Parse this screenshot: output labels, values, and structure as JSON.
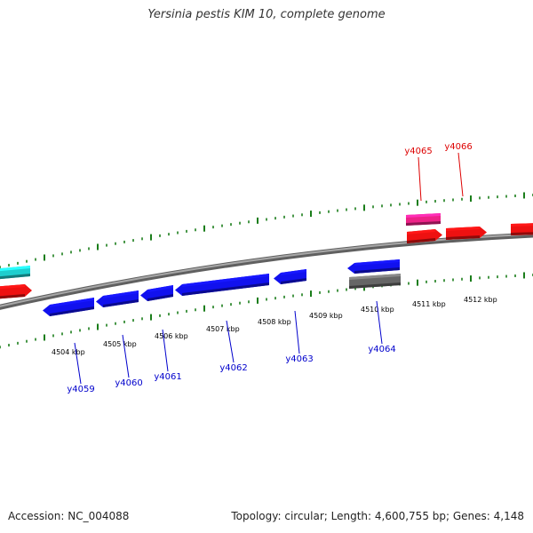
{
  "title": "Yersinia pestis KIM 10, complete genome",
  "footer": {
    "accession": "Accession: NC_004088",
    "stats": "Topology: circular; Length: 4,600,755 bp; Genes: 4,148"
  },
  "colors": {
    "backbone": "#808080",
    "tick": "#1a7d1a",
    "forward_gene": "#ee1111",
    "reverse_gene": "#1111ee",
    "label_forward": "#dd0000",
    "label_reverse": "#0000cc"
  },
  "chart_data": {
    "type": "linear genome map",
    "ruler_labels": [
      "4504 kbp",
      "4505 kbp",
      "4506 kbp",
      "4507 kbp",
      "4508 kbp",
      "4509 kbp",
      "4510 kbp",
      "4511 kbp",
      "4512 kbp"
    ],
    "genes": [
      {
        "label": "y4059",
        "strand": "reverse",
        "color": "#1111ee"
      },
      {
        "label": "y4060",
        "strand": "reverse",
        "color": "#1111ee"
      },
      {
        "label": "y4061",
        "strand": "reverse",
        "color": "#1111ee"
      },
      {
        "label": "y4062",
        "strand": "reverse",
        "color": "#1111ee"
      },
      {
        "label": "y4063",
        "strand": "reverse",
        "color": "#1111ee"
      },
      {
        "label": "y4064",
        "strand": "reverse",
        "color": "#1111ee"
      },
      {
        "label": "y4065",
        "strand": "forward",
        "color": "#ee1111"
      },
      {
        "label": "y4066",
        "strand": "forward",
        "color": "#ee1111"
      }
    ],
    "other_features": [
      {
        "strand": "forward",
        "color": "#1ecece"
      },
      {
        "strand": "forward",
        "color": "#ee1111"
      },
      {
        "strand": "forward",
        "color": "#ee2288"
      },
      {
        "strand": "forward",
        "color": "#ee1111"
      },
      {
        "strand": "reverse",
        "color": "#666666"
      }
    ]
  }
}
